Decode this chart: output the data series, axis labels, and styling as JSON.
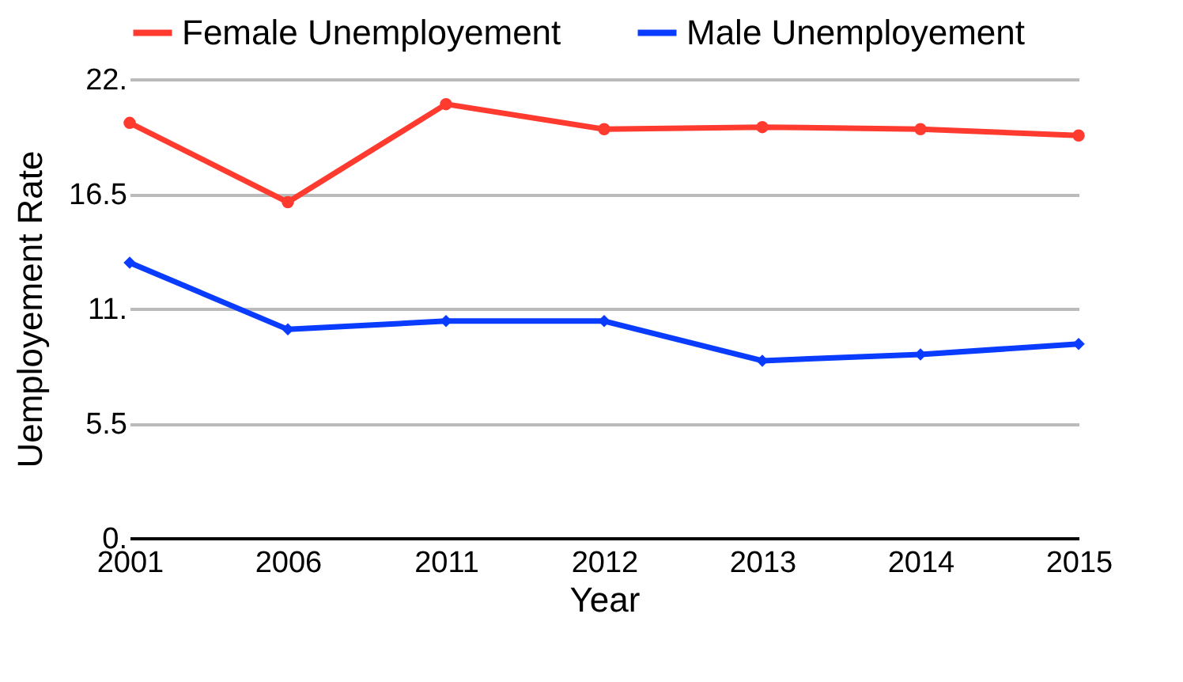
{
  "chart_data": {
    "type": "line",
    "xlabel": "Year",
    "ylabel": "Uemployement Rate",
    "categories": [
      "2001",
      "2006",
      "2011",
      "2012",
      "2013",
      "2014",
      "2015"
    ],
    "series": [
      {
        "name": "Female Unemployement",
        "color": "#ff3b30",
        "marker": "circle",
        "values": [
          19.9,
          16.1,
          20.8,
          19.6,
          19.7,
          19.6,
          19.3
        ]
      },
      {
        "name": "Male Unemployement",
        "color": "#0a3cff",
        "marker": "diamond",
        "values": [
          13.2,
          10.0,
          10.4,
          10.4,
          8.5,
          8.8,
          9.3
        ]
      }
    ],
    "ylim": [
      0,
      22
    ],
    "yticks": [
      {
        "value": 0,
        "label": "0."
      },
      5.5,
      {
        "value": 11,
        "label": "11."
      },
      16.5,
      {
        "value": 22,
        "label": "22."
      }
    ],
    "grid": "y",
    "legend": "top",
    "line_style": "solid"
  }
}
